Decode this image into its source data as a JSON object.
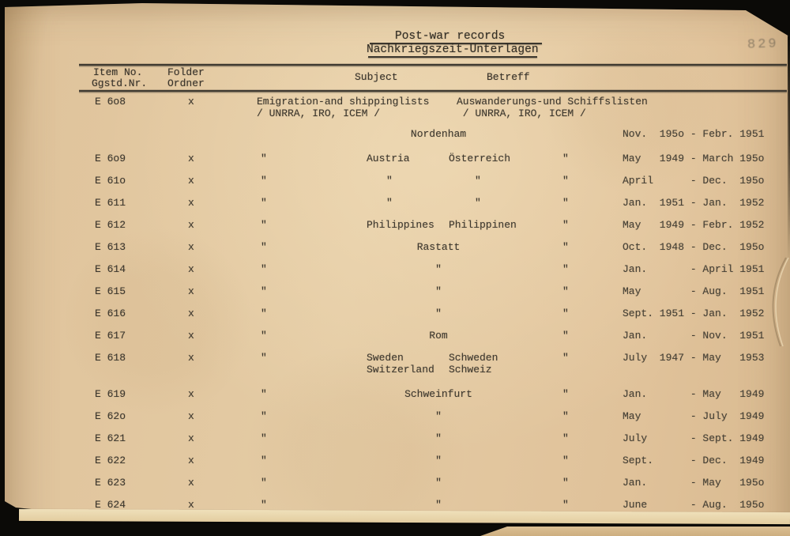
{
  "page": {
    "title_en": "Post-war records",
    "title_de": "Nachkriegszeit-Unterlagen",
    "page_number": "829"
  },
  "table": {
    "headers": {
      "item_line1": "Item No.",
      "item_line2": "Ggstd.Nr.",
      "folder_line1": "Folder",
      "folder_line2": "Ordner",
      "subject": "Subject",
      "betreff": "Betreff"
    },
    "ditto_mark": "\"",
    "rows": [
      {
        "kind": "main",
        "item": "E 6o8",
        "folder": "x",
        "subject": "Emigration-and shippinglists\n/ UNRRA, IRO, ICEM /",
        "betreff": "Auswanderungs-und Schiffslisten\n / UNRRA, IRO, ICEM /"
      },
      {
        "kind": "place",
        "center": "Nordenham",
        "date": "Nov.  195o - Febr. 1951"
      },
      {
        "kind": "item",
        "item": "E 6o9",
        "folder": "x",
        "subject": "\"",
        "sub1": "Austria",
        "sub2": "Österreich",
        "betreff": "\"",
        "date": "May   1949 - March 195o"
      },
      {
        "kind": "item",
        "item": "E 61o",
        "folder": "x",
        "subject": "\"",
        "sub1": "\"",
        "sub2": "\"",
        "betreff": "\"",
        "date": "April      - Dec.  195o"
      },
      {
        "kind": "item",
        "item": "E 611",
        "folder": "x",
        "subject": "\"",
        "sub1": "\"",
        "sub2": "\"",
        "betreff": "\"",
        "date": "Jan.  1951 - Jan.  1952"
      },
      {
        "kind": "item",
        "item": "E 612",
        "folder": "x",
        "subject": "\"",
        "sub1": "Philippines",
        "sub2": "Philippinen",
        "betreff": "\"",
        "date": "May   1949 - Febr. 1952"
      },
      {
        "kind": "item",
        "item": "E 613",
        "folder": "x",
        "subject": "\"",
        "center": "Rastatt",
        "betreff": "\"",
        "date": "Oct.  1948 - Dec.  195o"
      },
      {
        "kind": "item",
        "item": "E 614",
        "folder": "x",
        "subject": "\"",
        "center": "\"",
        "betreff": "\"",
        "date": "Jan.       - April 1951"
      },
      {
        "kind": "item",
        "item": "E 615",
        "folder": "x",
        "subject": "\"",
        "center": "\"",
        "betreff": "\"",
        "date": "May        - Aug.  1951"
      },
      {
        "kind": "item",
        "item": "E 616",
        "folder": "x",
        "subject": "\"",
        "center": "\"",
        "betreff": "\"",
        "date": "Sept. 1951 - Jan.  1952"
      },
      {
        "kind": "item",
        "item": "E 617",
        "folder": "x",
        "subject": "\"",
        "center": "Rom",
        "betreff": "\"",
        "date": "Jan.       - Nov.  1951"
      },
      {
        "kind": "item",
        "item": "E 618",
        "folder": "x",
        "subject": "\"",
        "sub1": "Sweden\nSwitzerland",
        "sub2": "Schweden\nSchweiz",
        "betreff": "\"",
        "date": "July  1947 - May   1953",
        "tall": true
      },
      {
        "kind": "item",
        "item": "E 619",
        "folder": "x",
        "subject": "\"",
        "center": "Schweinfurt",
        "betreff": "\"",
        "date": "Jan.       - May   1949"
      },
      {
        "kind": "item",
        "item": "E 62o",
        "folder": "x",
        "subject": "\"",
        "center": "\"",
        "betreff": "\"",
        "date": "May        - July  1949"
      },
      {
        "kind": "item",
        "item": "E 621",
        "folder": "x",
        "subject": "\"",
        "center": "\"",
        "betreff": "\"",
        "date": "July       - Sept. 1949"
      },
      {
        "kind": "item",
        "item": "E 622",
        "folder": "x",
        "subject": "\"",
        "center": "\"",
        "betreff": "\"",
        "date": "Sept.      - Dec.  1949"
      },
      {
        "kind": "item",
        "item": "E 623",
        "folder": "x",
        "subject": "\"",
        "center": "\"",
        "betreff": "\"",
        "date": "Jan.       - May   195o"
      },
      {
        "kind": "item",
        "item": "E 624",
        "folder": "x",
        "subject": "\"",
        "center": "\"",
        "betreff": "\"",
        "date": "June       - Aug.  195o"
      }
    ]
  }
}
